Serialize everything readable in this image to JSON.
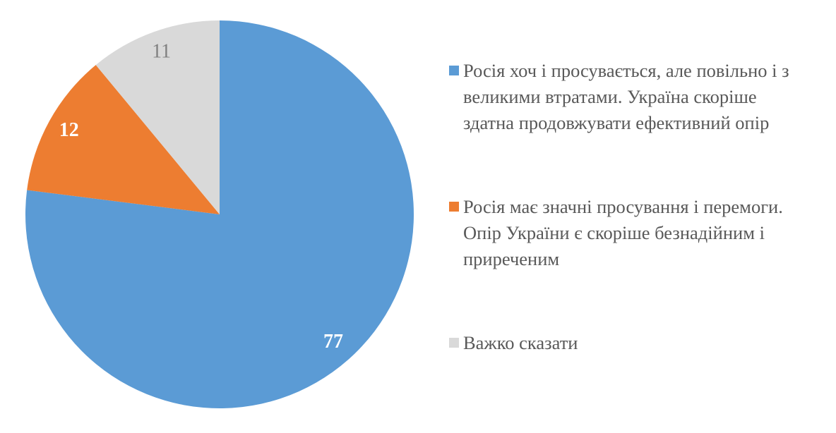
{
  "chart_data": {
    "type": "pie",
    "categories": [
      "Росія хоч і просувається, але повільно і з великими втратами. Україна скоріше здатна продовжувати ефективний опір",
      "Росія має значні просування і перемоги. Опір України є скоріше безнадійним і приреченим",
      "Важко сказати"
    ],
    "values": [
      77,
      12,
      11
    ],
    "colors": [
      "#5b9bd5",
      "#ed7d31",
      "#d9d9d9"
    ],
    "label_colors": [
      "#ffffff",
      "#ffffff",
      "#808080"
    ],
    "label_bold": [
      true,
      true,
      false
    ],
    "legend": "right"
  }
}
